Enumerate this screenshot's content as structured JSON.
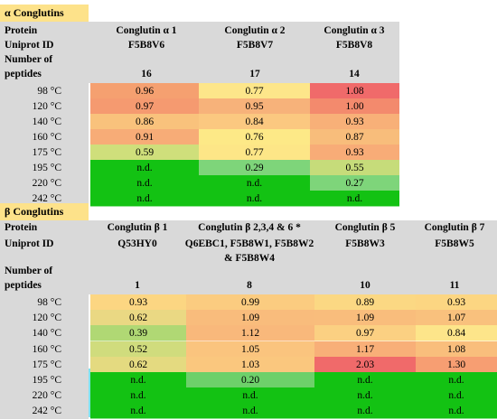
{
  "alpha": {
    "title": "α Conglutins",
    "header": {
      "protein_label": "Protein",
      "uniprot_label": "Uniprot ID",
      "peptides_label1": "Number of",
      "peptides_label2": "peptides",
      "columns": [
        {
          "name": "Conglutin α 1",
          "uniprot": "F5B8V6",
          "peptides": "16"
        },
        {
          "name": "Conglutin α 2",
          "uniprot": "F5B8V7",
          "peptides": "17"
        },
        {
          "name": "Conglutin α 3",
          "uniprot": "F5B8V8",
          "peptides": "14"
        }
      ]
    },
    "rows": [
      {
        "temp": "98 °C",
        "values": [
          "0.96",
          "0.77",
          "1.08"
        ],
        "colors": [
          "#f5a070",
          "#fde68a",
          "#f06a6a"
        ]
      },
      {
        "temp": "120 °C",
        "values": [
          "0.97",
          "0.95",
          "1.00"
        ],
        "colors": [
          "#f59a70",
          "#f7b27a",
          "#f38a6d"
        ]
      },
      {
        "temp": "140 °C",
        "values": [
          "0.86",
          "0.84",
          "0.93"
        ],
        "colors": [
          "#f9c27c",
          "#fbc880",
          "#f8b078"
        ]
      },
      {
        "temp": "160 °C",
        "values": [
          "0.91",
          "0.76",
          "0.87"
        ],
        "colors": [
          "#f7ac77",
          "#fde987",
          "#f8bd7b"
        ]
      },
      {
        "temp": "175 °C",
        "values": [
          "0.59",
          "0.77",
          "0.93"
        ],
        "colors": [
          "#cfdf7b",
          "#fde687",
          "#f8ac77"
        ]
      },
      {
        "temp": "195 °C",
        "values": [
          "n.d.",
          "0.29",
          "0.55"
        ],
        "colors": [
          "#13c213",
          "#7ed57a",
          "#c6dc7a"
        ]
      },
      {
        "temp": "220 °C",
        "values": [
          "n.d.",
          "n.d.",
          "0.27"
        ],
        "colors": [
          "#13c213",
          "#13c213",
          "#7ed57a"
        ]
      },
      {
        "temp": "242 °C",
        "values": [
          "n.d.",
          "n.d.",
          "n.d."
        ],
        "colors": [
          "#13c213",
          "#13c213",
          "#13c213"
        ]
      }
    ]
  },
  "beta": {
    "title": "β Conglutins",
    "header": {
      "protein_label": "Protein",
      "uniprot_label": "Uniprot ID",
      "peptides_label1": "Number of",
      "peptides_label2": "peptides",
      "columns": [
        {
          "name": "Conglutin β 1",
          "uniprot": "Q53HY0",
          "uniprot2": "",
          "peptides": "1"
        },
        {
          "name": "Conglutin β 2,3,4 & 6 *",
          "uniprot": "Q6EBC1, F5B8W1, F5B8W2",
          "uniprot2": "& F5B8W4",
          "peptides": "8"
        },
        {
          "name": "Conglutin β 5",
          "uniprot": "F5B8W3",
          "uniprot2": "",
          "peptides": "10"
        },
        {
          "name": "Conglutin β 7",
          "uniprot": "F5B8W5",
          "uniprot2": "",
          "peptides": "11"
        }
      ]
    },
    "rows": [
      {
        "temp": "98 °C",
        "values": [
          "0.93",
          "0.99",
          "0.89",
          "0.93"
        ],
        "colors": [
          "#fcd682",
          "#fbcc80",
          "#fbd883",
          "#fcd682"
        ]
      },
      {
        "temp": "120 °C",
        "values": [
          "0.62",
          "1.09",
          "1.09",
          "1.07"
        ],
        "colors": [
          "#ead883",
          "#f9bc7c",
          "#f9bd7c",
          "#f9c17d"
        ]
      },
      {
        "temp": "140 °C",
        "values": [
          "0.39",
          "1.12",
          "0.97",
          "0.84"
        ],
        "colors": [
          "#b0d874",
          "#f9b87b",
          "#fbd082",
          "#fde58a"
        ]
      },
      {
        "temp": "160 °C",
        "values": [
          "0.52",
          "1.05",
          "1.17",
          "1.08"
        ],
        "colors": [
          "#d0dc7d",
          "#fac47e",
          "#f8af78",
          "#f9be7c"
        ]
      },
      {
        "temp": "175 °C",
        "values": [
          "0.62",
          "1.03",
          "2.03",
          "1.30"
        ],
        "colors": [
          "#e4da80",
          "#fac77e",
          "#f06a6a",
          "#f79e72"
        ]
      },
      {
        "temp": "195 °C",
        "values": [
          "n.d.",
          "0.20",
          "n.d.",
          "n.d."
        ],
        "colors": [
          "#13c213",
          "#6dd06a",
          "#13c213",
          "#13c213"
        ]
      },
      {
        "temp": "220 °C",
        "values": [
          "n.d.",
          "n.d.",
          "n.d.",
          "n.d."
        ],
        "colors": [
          "#13c213",
          "#13c213",
          "#13c213",
          "#13c213"
        ]
      },
      {
        "temp": "242 °C",
        "values": [
          "n.d.",
          "n.d.",
          "n.d.",
          "n.d."
        ],
        "colors": [
          "#13c213",
          "#13c213",
          "#13c213",
          "#13c213"
        ]
      }
    ]
  }
}
